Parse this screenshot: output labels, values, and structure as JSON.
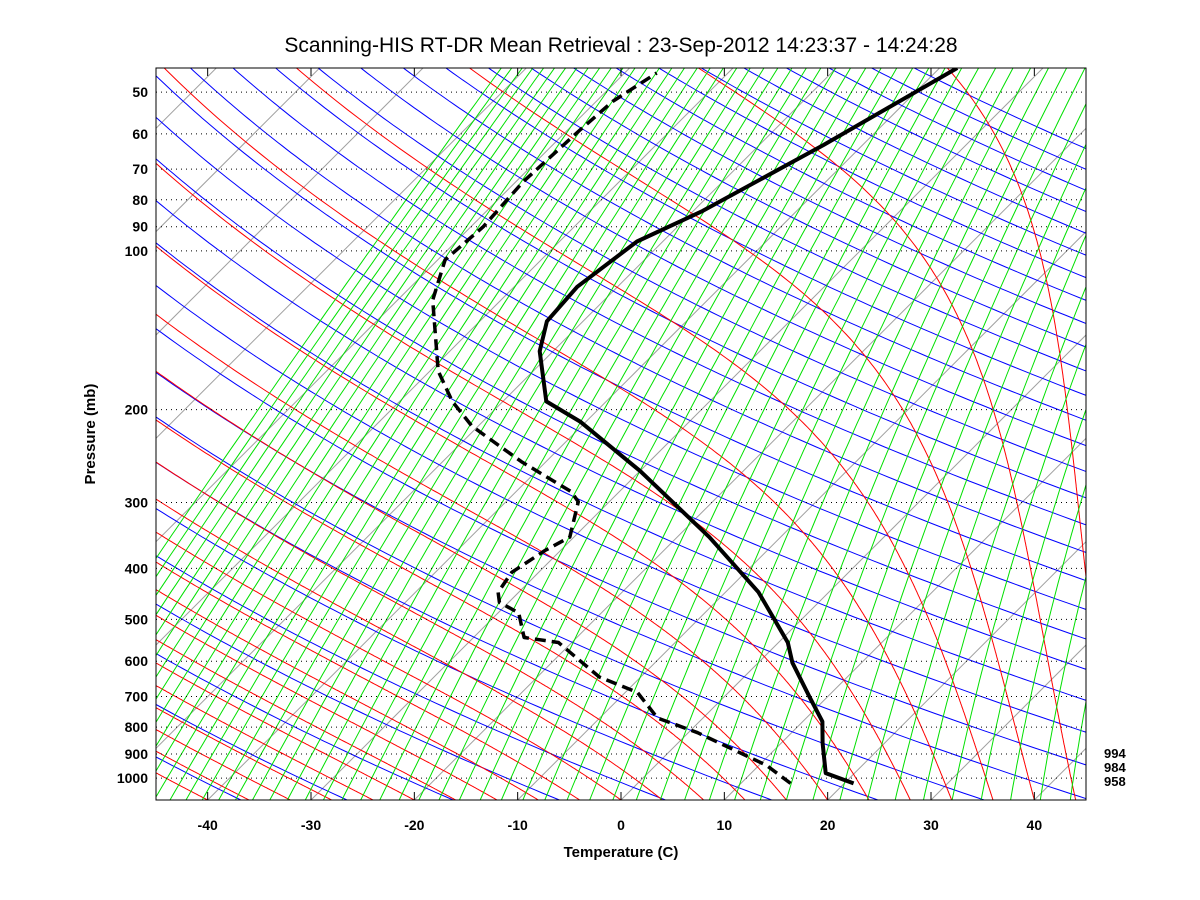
{
  "chart_data": {
    "type": "line",
    "subtype": "skew-T log-P diagram",
    "title": "Scanning-HIS RT-DR Mean Retrieval : 23-Sep-2012 14:23:37 - 14:24:28",
    "xlabel": "Temperature (C)",
    "ylabel": "Pressure (mb)",
    "xlim": [
      -45,
      45
    ],
    "ylim": [
      1100,
      45
    ],
    "yscale": "log",
    "xticks": [
      -40,
      -30,
      -20,
      -10,
      0,
      10,
      20,
      30,
      40
    ],
    "yticks": [
      50,
      60,
      70,
      80,
      90,
      100,
      200,
      300,
      400,
      500,
      600,
      700,
      800,
      900,
      1000
    ],
    "grid": "dotted horizontal lines at pressure ticks",
    "side_labels": [
      "994",
      "984",
      "958"
    ],
    "background_colors": {
      "isotherm": "#a0a0a0",
      "mixing_ratio": "#00e000",
      "moist_adiabat": "#ff0000",
      "dry_adiabat": "#0000ff"
    },
    "series": [
      {
        "name": "Temperature",
        "style": "solid",
        "color": "#000000",
        "p": [
          1023,
          978,
          858,
          781,
          702,
          604,
          553,
          444,
          349,
          262,
          211,
          193,
          155,
          136,
          117,
          96,
          84,
          63,
          45
        ],
        "T": [
          20.9,
          17.2,
          14.0,
          11.9,
          8.3,
          3.3,
          0.9,
          -6.8,
          -16.9,
          -29.9,
          -40.5,
          -45.8,
          -51.3,
          -53.5,
          -53.9,
          -52.5,
          -49.1,
          -43.8,
          -38.3
        ]
      },
      {
        "name": "Dewpoint",
        "style": "dashed",
        "color": "#000000",
        "p": [
          1023,
          945,
          820,
          769,
          688,
          643,
          553,
          541,
          486,
          464,
          444,
          407,
          370,
          349,
          299,
          286,
          251,
          215,
          193,
          169,
          124,
          104,
          90,
          74,
          59,
          52,
          46
        ],
        "T": [
          14.8,
          10.7,
          0.9,
          -4.4,
          -8.8,
          -14.0,
          -21.3,
          -25.1,
          -28.0,
          -30.9,
          -32.0,
          -32.6,
          -31.5,
          -30.4,
          -33.0,
          -34.7,
          -42.4,
          -50.6,
          -54.9,
          -59.2,
          -66.6,
          -69.3,
          -68.8,
          -69.3,
          -68.8,
          -68.4,
          -66.9
        ]
      }
    ]
  }
}
